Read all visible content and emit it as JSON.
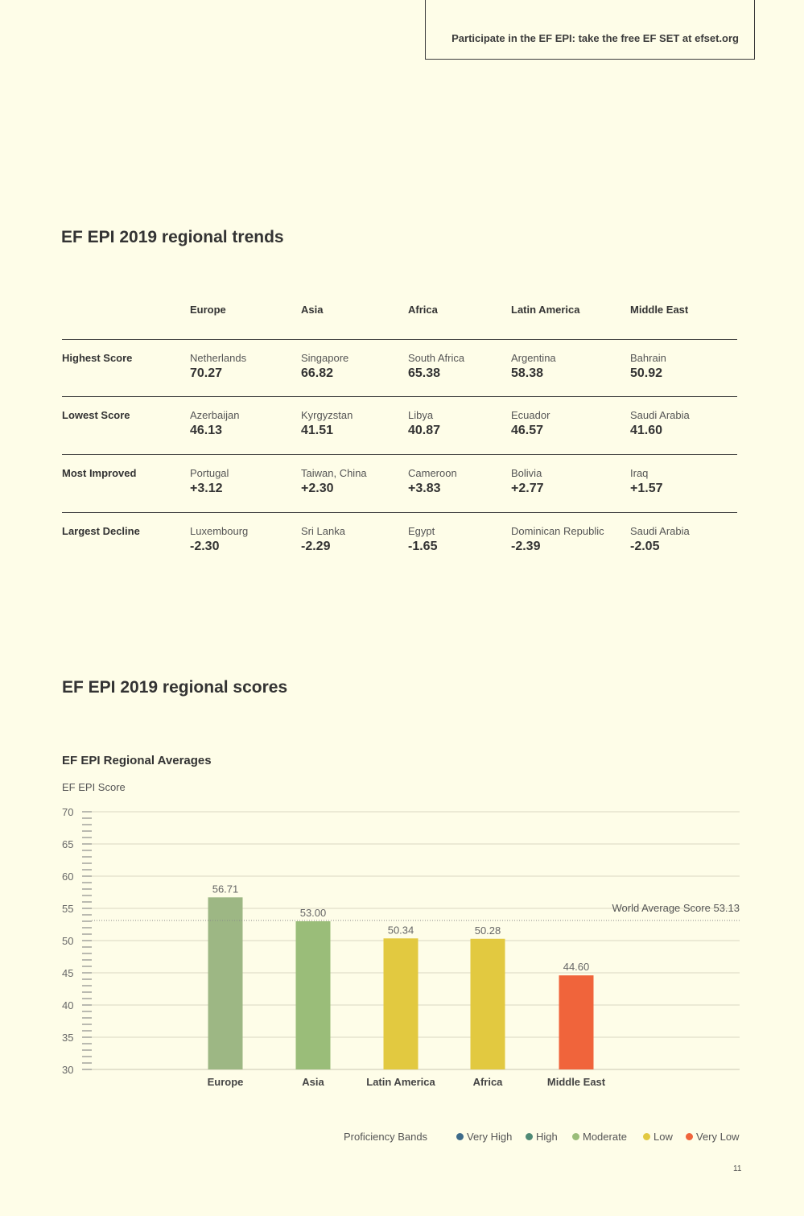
{
  "promo": {
    "text": "Participate in the EF EPI: take the free EF SET at efset.org"
  },
  "trends": {
    "title": "EF EPI 2019 regional trends",
    "columns": [
      "Europe",
      "Asia",
      "Africa",
      "Latin America",
      "Middle East"
    ],
    "rows": [
      {
        "label": "Highest Score",
        "cells": [
          {
            "name": "Netherlands",
            "value": "70.27"
          },
          {
            "name": "Singapore",
            "value": "66.82"
          },
          {
            "name": "South Africa",
            "value": "65.38"
          },
          {
            "name": "Argentina",
            "value": "58.38"
          },
          {
            "name": "Bahrain",
            "value": "50.92"
          }
        ]
      },
      {
        "label": "Lowest Score",
        "cells": [
          {
            "name": "Azerbaijan",
            "value": "46.13"
          },
          {
            "name": "Kyrgyzstan",
            "value": "41.51"
          },
          {
            "name": "Libya",
            "value": "40.87"
          },
          {
            "name": "Ecuador",
            "value": "46.57"
          },
          {
            "name": "Saudi Arabia",
            "value": "41.60"
          }
        ]
      },
      {
        "label": "Most Improved",
        "cells": [
          {
            "name": "Portugal",
            "value": "+3.12"
          },
          {
            "name": "Taiwan, China",
            "value": "+2.30"
          },
          {
            "name": "Cameroon",
            "value": "+3.83"
          },
          {
            "name": "Bolivia",
            "value": "+2.77"
          },
          {
            "name": "Iraq",
            "value": "+1.57"
          }
        ]
      },
      {
        "label": "Largest Decline",
        "cells": [
          {
            "name": "Luxembourg",
            "value": "-2.30"
          },
          {
            "name": "Sri Lanka",
            "value": "-2.29"
          },
          {
            "name": "Egypt",
            "value": "-1.65"
          },
          {
            "name": "Dominican Republic",
            "value": "-2.39"
          },
          {
            "name": "Saudi Arabia",
            "value": "-2.05"
          }
        ]
      }
    ]
  },
  "scores": {
    "title": "EF EPI 2019 regional scores"
  },
  "chart_data": {
    "type": "bar",
    "title": "EF EPI Regional Averages",
    "ylabel": "EF EPI Score",
    "xlabel": "",
    "ylim": [
      30,
      70
    ],
    "yticks": [
      30,
      35,
      40,
      45,
      50,
      55,
      60,
      65,
      70
    ],
    "grid": true,
    "categories": [
      "Europe",
      "Asia",
      "Latin America",
      "Africa",
      "Middle East"
    ],
    "values": [
      56.71,
      53.0,
      50.34,
      50.28,
      44.6
    ],
    "value_labels": [
      "56.71",
      "53.00",
      "50.34",
      "50.28",
      "44.60"
    ],
    "bar_colors": [
      "#9db784",
      "#9abd79",
      "#e2c940",
      "#e2c940",
      "#f0643b"
    ],
    "reference_line": {
      "label": "World Average Score 53.13",
      "value": 53.13
    },
    "legend": {
      "title": "Proficiency Bands",
      "placement": "bottom-right",
      "items": [
        {
          "label": "Very High",
          "color": "#3e6b8a"
        },
        {
          "label": "High",
          "color": "#4f8a75"
        },
        {
          "label": "Moderate",
          "color": "#9abd79"
        },
        {
          "label": "Low",
          "color": "#e2c940"
        },
        {
          "label": "Very Low",
          "color": "#f0643b"
        }
      ]
    }
  },
  "page_number": "11"
}
